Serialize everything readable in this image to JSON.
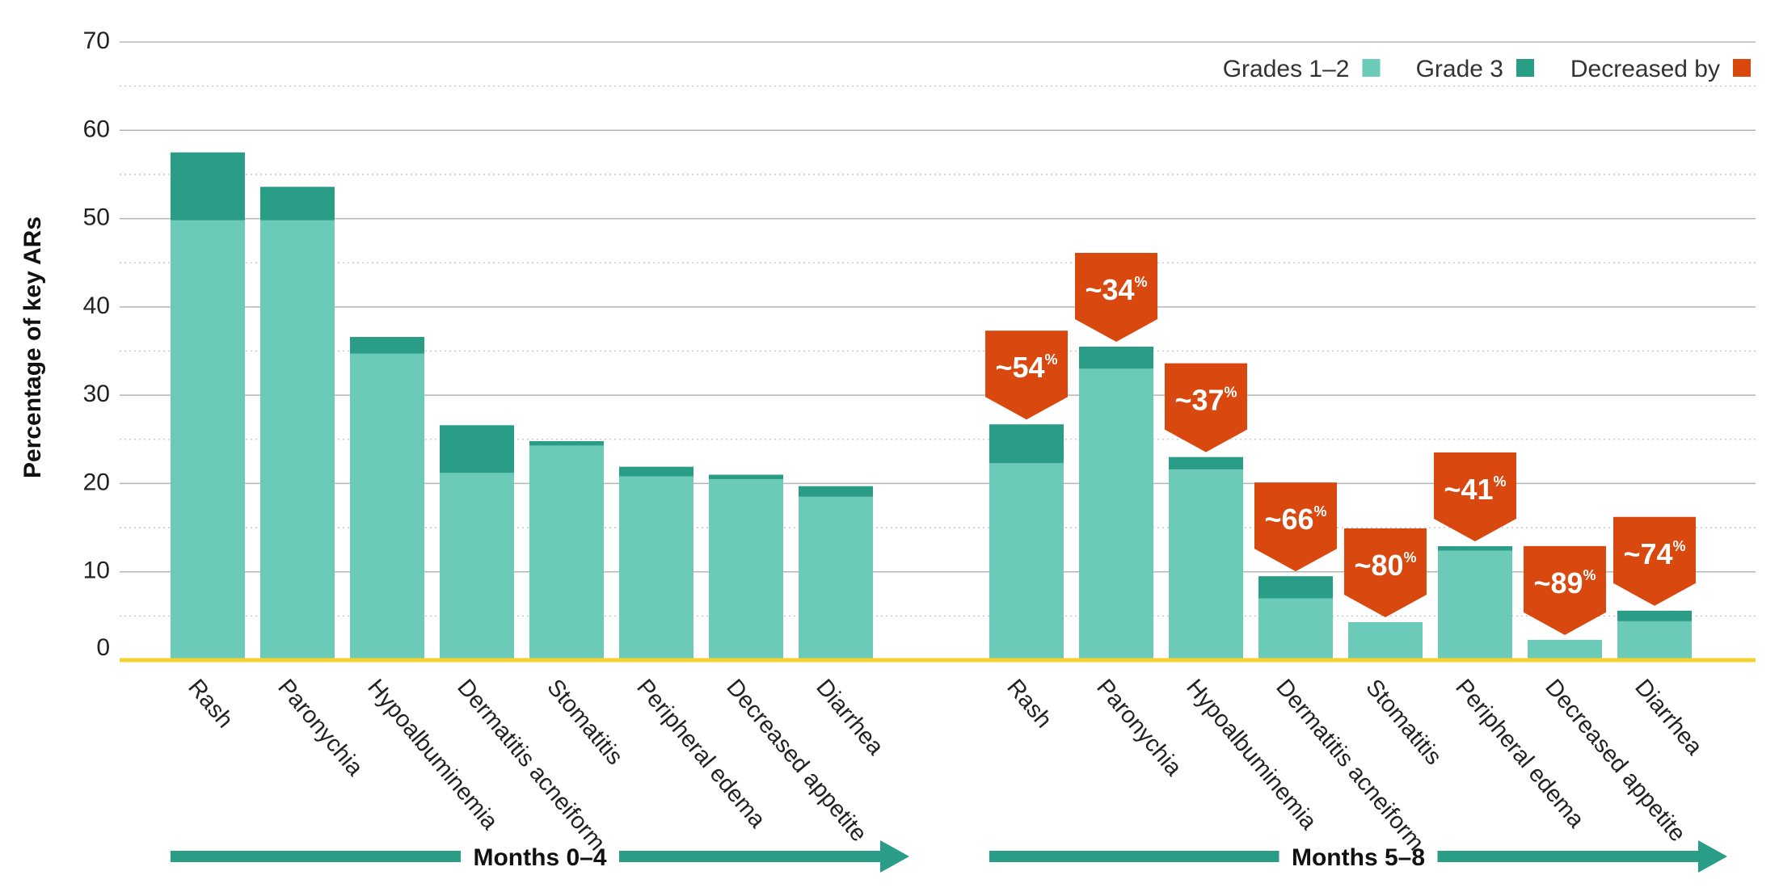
{
  "chart_data": {
    "type": "bar",
    "stacked": true,
    "ylabel": "Percentage of key ARs",
    "ylim": [
      0,
      70
    ],
    "yticks": [
      0,
      10,
      20,
      30,
      40,
      50,
      60,
      70
    ],
    "grid": true,
    "legend": {
      "placement": "top-right",
      "items": [
        {
          "label": "Grades 1–2",
          "color": "#6ccab8"
        },
        {
          "label": "Grade 3",
          "color": "#2a9d87"
        },
        {
          "label": "Decreased by",
          "color": "#d9480f"
        }
      ]
    },
    "groups": [
      {
        "label": "Months 0–4",
        "categories": [
          "Rash",
          "Paronychia",
          "Hypoalbuminemia",
          "Dermatitis acneiform",
          "Stomatitis",
          "Peripheral edema",
          "Decreased appetite",
          "Diarrhea"
        ],
        "series": [
          {
            "name": "Grades 1–2",
            "values": [
              49.8,
              49.8,
              34.7,
              21.2,
              24.3,
              20.8,
              20.5,
              18.5
            ]
          },
          {
            "name": "Grade 3",
            "values": [
              7.7,
              3.8,
              1.9,
              5.4,
              0.5,
              1.1,
              0.5,
              1.2
            ]
          }
        ]
      },
      {
        "label": "Months 5–8",
        "categories": [
          "Rash",
          "Paronychia",
          "Hypoalbuminemia",
          "Dermatitis acneiform",
          "Stomatitis",
          "Peripheral edema",
          "Decreased appetite",
          "Diarrhea"
        ],
        "series": [
          {
            "name": "Grades 1–2",
            "values": [
              22.3,
              33.0,
              21.6,
              7.0,
              4.3,
              12.4,
              2.3,
              4.4
            ]
          },
          {
            "name": "Grade 3",
            "values": [
              4.4,
              2.5,
              1.4,
              2.5,
              0.0,
              0.5,
              0.0,
              1.2
            ]
          }
        ],
        "decreased_by": [
          {
            "value": "~54",
            "unit": "%"
          },
          {
            "value": "~34",
            "unit": "%"
          },
          {
            "value": "~37",
            "unit": "%"
          },
          {
            "value": "~66",
            "unit": "%"
          },
          {
            "value": "~80",
            "unit": "%"
          },
          {
            "value": "~41",
            "unit": "%"
          },
          {
            "value": "~89",
            "unit": "%"
          },
          {
            "value": "~74",
            "unit": "%"
          }
        ]
      }
    ]
  },
  "colors": {
    "grade12": "#6ccab8",
    "grade3": "#2a9d87",
    "decreased": "#d9480f",
    "baseline": "#f5d130",
    "arrow": "#2a9d87"
  }
}
